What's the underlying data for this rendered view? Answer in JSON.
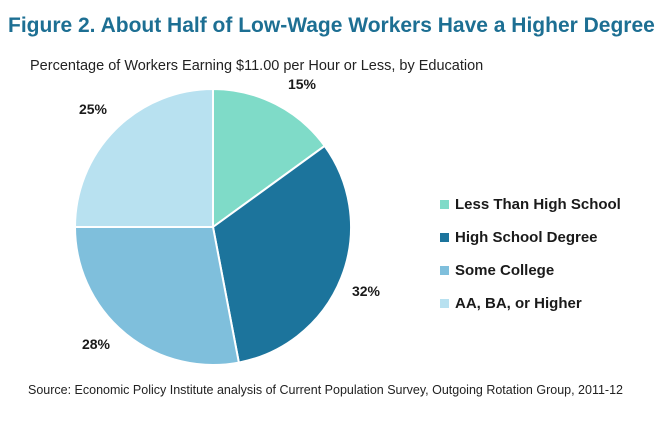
{
  "title": "Figure 2. About Half of Low-Wage Workers Have a Higher Degree",
  "subtitle": "Percentage of Workers Earning $11.00 per Hour or Less, by Education",
  "source": "Source: Economic Policy  Institute analysis  of Current Population Survey,  Outgoing Rotation Group, 2011-12",
  "chart_data": {
    "type": "pie",
    "title": "Figure 2. About Half of Low-Wage Workers Have a Higher Degree",
    "subtitle": "Percentage of Workers Earning $11.00 per Hour or Less, by Education",
    "slices": [
      {
        "name": "Less Than High School",
        "value": 15,
        "label": "15%",
        "color": "#7fdbc8"
      },
      {
        "name": "High School Degree",
        "value": 32,
        "label": "32%",
        "color": "#1c749c"
      },
      {
        "name": "Some College",
        "value": 28,
        "label": "28%",
        "color": "#7fbfdc"
      },
      {
        "name": "AA, BA, or Higher",
        "value": 25,
        "label": "25%",
        "color": "#b8e1f0"
      }
    ],
    "start_angle_deg": 0,
    "direction": "clockwise",
    "legend_position": "right"
  }
}
